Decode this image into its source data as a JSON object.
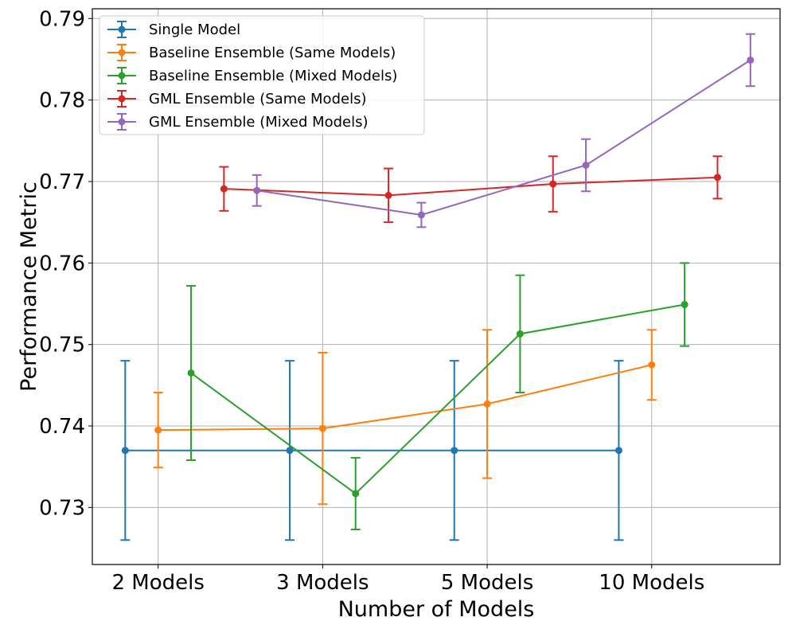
{
  "chart_data": {
    "type": "line",
    "title": "",
    "xlabel": "Number of Models",
    "ylabel": "Performance Metric",
    "categories": [
      "2 Models",
      "3 Models",
      "5 Models",
      "10 Models"
    ],
    "ylim": [
      0.723,
      0.7912
    ],
    "yticks": [
      "0.73",
      "0.74",
      "0.75",
      "0.76",
      "0.77",
      "0.78",
      "0.79"
    ],
    "grid": true,
    "legend_position": "top-left",
    "series": [
      {
        "name": "Single Model",
        "color": "#1f77b4",
        "offset": -0.2,
        "values": [
          0.737,
          0.737,
          0.737,
          0.737
        ],
        "errors": [
          0.011,
          0.011,
          0.011,
          0.011
        ]
      },
      {
        "name": "Baseline Ensemble (Same Models)",
        "color": "#ff7f0e",
        "offset": 0.0,
        "values": [
          0.7395,
          0.7397,
          0.7427,
          0.7475
        ],
        "errors": [
          0.0046,
          0.0093,
          0.0091,
          0.0043
        ]
      },
      {
        "name": "Baseline Ensemble (Mixed Models)",
        "color": "#2ca02c",
        "offset": 0.2,
        "values": [
          0.7465,
          0.7317,
          0.7513,
          0.7549
        ],
        "errors": [
          0.0107,
          0.0044,
          0.0072,
          0.0051
        ]
      },
      {
        "name": "GML Ensemble (Same Models)",
        "color": "#d62728",
        "offset": 0.4,
        "values": [
          0.7691,
          0.7683,
          0.7697,
          0.7705
        ],
        "errors": [
          0.0027,
          0.0033,
          0.0034,
          0.0026
        ]
      },
      {
        "name": "GML Ensemble (Mixed Models)",
        "color": "#9467bd",
        "offset": 0.6,
        "values": [
          0.7689,
          0.7659,
          0.772,
          0.7849
        ],
        "errors": [
          0.0019,
          0.0015,
          0.0032,
          0.0032
        ]
      }
    ]
  }
}
